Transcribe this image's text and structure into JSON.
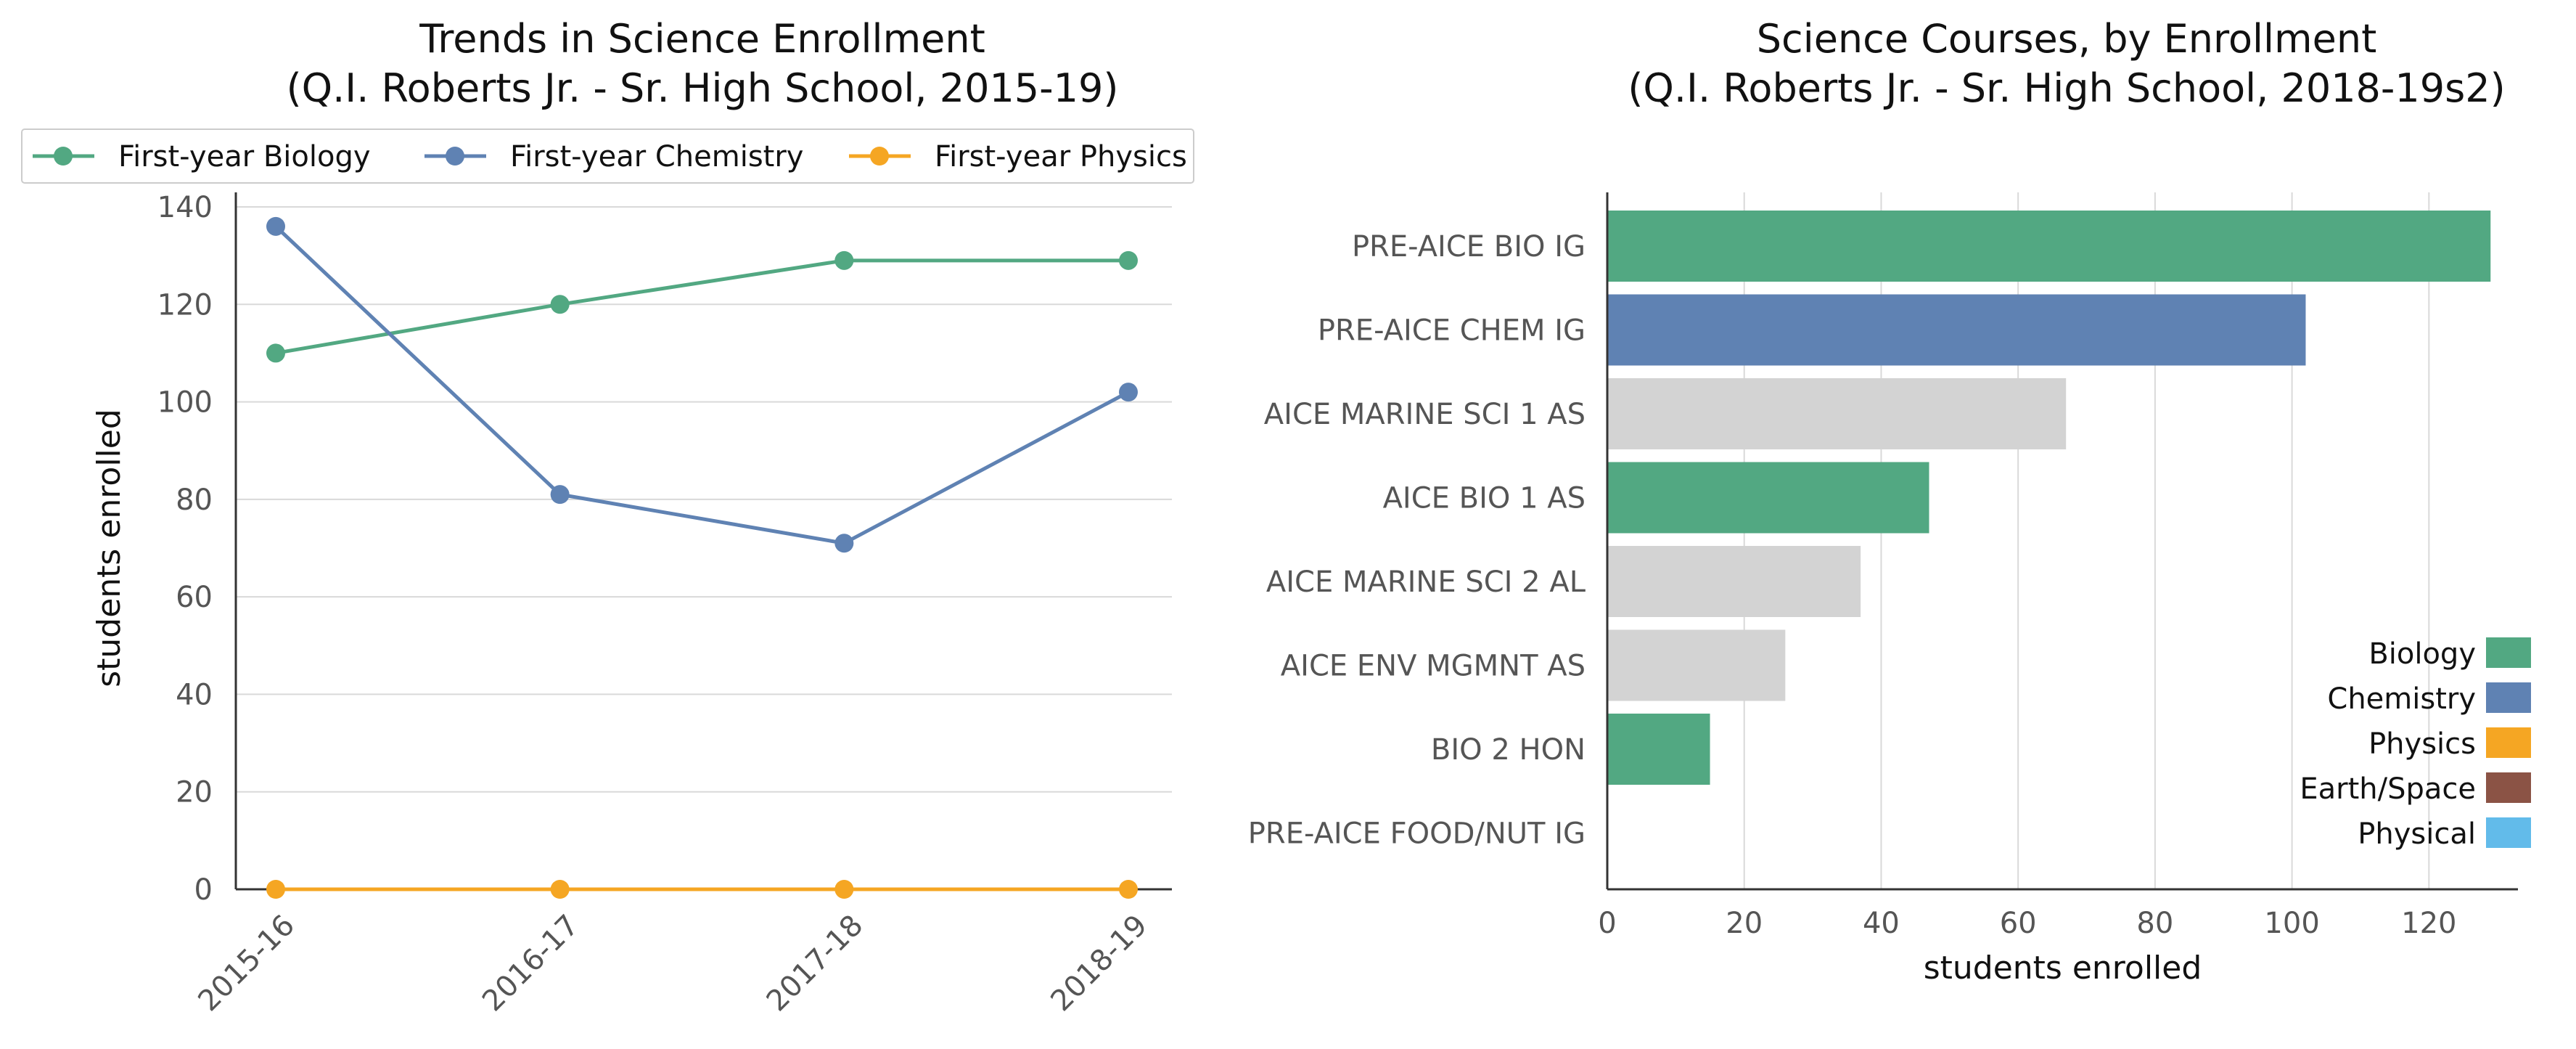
{
  "chart_data": [
    {
      "type": "line",
      "title": "Trends in Science Enrollment\n(Q.I. Roberts Jr. - Sr. High School, 2015-19)",
      "xlabel": "",
      "ylabel": "students enrolled",
      "x": [
        "2015-16",
        "2016-17",
        "2017-18",
        "2018-19"
      ],
      "ylim": [
        0,
        140
      ],
      "yticks": [
        0,
        20,
        40,
        60,
        80,
        100,
        120,
        140
      ],
      "grid": "horizontal",
      "legend_position": "top",
      "series": [
        {
          "name": "First-year Biology",
          "values": [
            110,
            120,
            129,
            129
          ],
          "color": "#52a882"
        },
        {
          "name": "First-year Chemistry",
          "values": [
            136,
            81,
            71,
            102
          ],
          "color": "#5f82b3"
        },
        {
          "name": "First-year Physics",
          "values": [
            0,
            0,
            0,
            0
          ],
          "color": "#f5a623"
        }
      ]
    },
    {
      "type": "bar",
      "orientation": "horizontal",
      "title": "Science Courses, by Enrollment\n(Q.I. Roberts Jr. - Sr. High School, 2018-19s2)",
      "xlabel": "students enrolled",
      "ylabel": "",
      "xlim": [
        0,
        133
      ],
      "xticks": [
        0,
        20,
        40,
        60,
        80,
        100,
        120
      ],
      "grid": "vertical",
      "categories": [
        "PRE-AICE BIO IG",
        "PRE-AICE CHEM IG",
        "AICE MARINE SCI 1 AS",
        "AICE BIO 1 AS",
        "AICE MARINE SCI 2 AL",
        "AICE ENV MGMNT AS",
        "BIO 2 HON",
        "PRE-AICE FOOD/NUT IG"
      ],
      "values": [
        129,
        102,
        67,
        47,
        37,
        26,
        15,
        0
      ],
      "bar_subjects": [
        "Biology",
        "Chemistry",
        "Other",
        "Biology",
        "Other",
        "Other",
        "Biology",
        "Other"
      ],
      "legend_position": "lower-right",
      "legend": [
        {
          "name": "Biology",
          "color": "#52a882"
        },
        {
          "name": "Chemistry",
          "color": "#5f82b3"
        },
        {
          "name": "Physics",
          "color": "#f5a623"
        },
        {
          "name": "Earth/Space",
          "color": "#8b5345"
        },
        {
          "name": "Physical",
          "color": "#62bbea"
        }
      ],
      "other_color": "#d3d3d3"
    }
  ]
}
